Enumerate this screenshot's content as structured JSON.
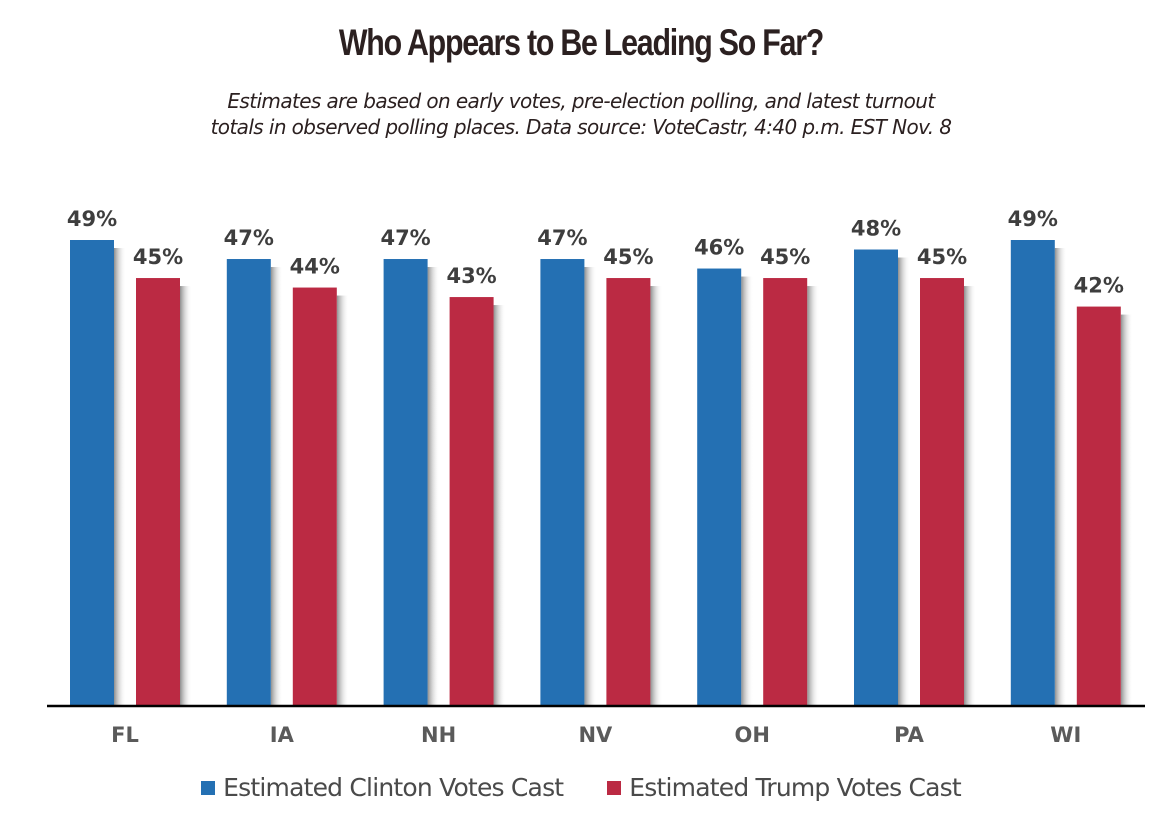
{
  "chart_data": {
    "type": "bar",
    "title": "Who Appears to Be Leading So Far?",
    "subtitle_lines": [
      "Estimates are based on early votes, pre-election polling, and latest turnout",
      "totals in observed polling places. Data source: VoteCastr, 4:40 p.m. EST Nov. 8"
    ],
    "categories": [
      "FL",
      "IA",
      "NH",
      "NV",
      "OH",
      "PA",
      "WI"
    ],
    "series": [
      {
        "name": "Estimated Clinton Votes Cast",
        "color": "#2470b3",
        "values": [
          49,
          47,
          47,
          47,
          46,
          48,
          49
        ]
      },
      {
        "name": "Estimated Trump Votes Cast",
        "color": "#bb2a43",
        "values": [
          45,
          44,
          43,
          45,
          45,
          45,
          42
        ]
      }
    ],
    "value_suffix": "%",
    "xlabel": "",
    "ylabel": "",
    "ylim": [
      0,
      49
    ],
    "grid": false,
    "legend_position": "bottom"
  }
}
